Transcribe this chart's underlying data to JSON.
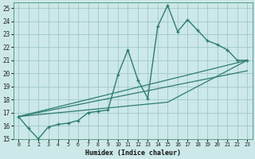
{
  "xlabel": "Humidex (Indice chaleur)",
  "bg_color": "#cce8e8",
  "grid_color": "#a0c8c8",
  "line_color": "#2e7d6e",
  "xlim": [
    -0.5,
    23.5
  ],
  "ylim": [
    15,
    25.4
  ],
  "yticks": [
    15,
    16,
    17,
    18,
    19,
    20,
    21,
    22,
    23,
    24,
    25
  ],
  "xticks": [
    0,
    1,
    2,
    3,
    4,
    5,
    6,
    7,
    8,
    9,
    10,
    11,
    12,
    13,
    14,
    15,
    16,
    17,
    18,
    19,
    20,
    21,
    22,
    23
  ],
  "series1_x": [
    0,
    1,
    2,
    3,
    4,
    5,
    6,
    7,
    8,
    9,
    10,
    11,
    12,
    13,
    14,
    15,
    16,
    17,
    18,
    19,
    20,
    21,
    22,
    23
  ],
  "series1_y": [
    16.7,
    15.8,
    15.0,
    15.9,
    16.1,
    16.2,
    16.4,
    17.0,
    17.1,
    17.2,
    19.9,
    21.8,
    19.5,
    18.1,
    23.6,
    25.2,
    23.2,
    24.1,
    23.3,
    22.5,
    22.2,
    21.8,
    21.0,
    21.0
  ],
  "series2_x": [
    0,
    23
  ],
  "series2_y": [
    16.7,
    21.0
  ],
  "series3_x": [
    0,
    23
  ],
  "series3_y": [
    16.7,
    20.2
  ],
  "series4_x": [
    0,
    15,
    23
  ],
  "series4_y": [
    16.7,
    17.8,
    21.0
  ]
}
